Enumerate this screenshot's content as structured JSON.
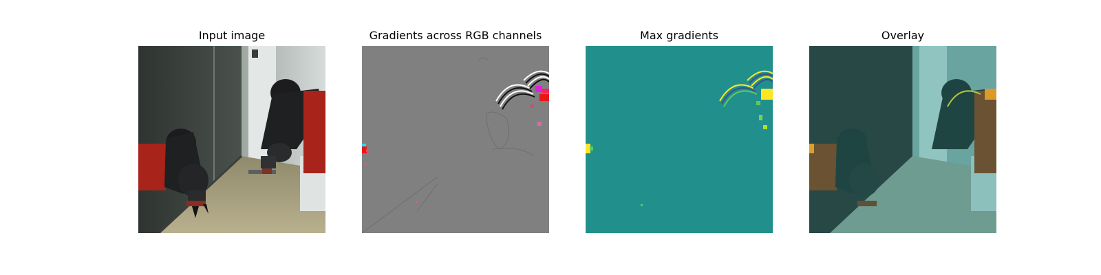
{
  "figure": {
    "panels": [
      {
        "title": "Input image",
        "image": "robot-arm-photo"
      },
      {
        "title": "Gradients across RGB channels",
        "image": "rgb-gradient-map"
      },
      {
        "title": "Max gradients",
        "image": "max-gradient-heatmap"
      },
      {
        "title": "Overlay",
        "image": "heatmap-overlay-photo"
      }
    ]
  },
  "colors": {
    "gray_background": "#808080",
    "teal_background": "#21908d",
    "robot_red": "#b3241a",
    "robot_black": "#1b1b1d",
    "heat_yellow": "#fde725",
    "heat_green": "#5ec962"
  }
}
